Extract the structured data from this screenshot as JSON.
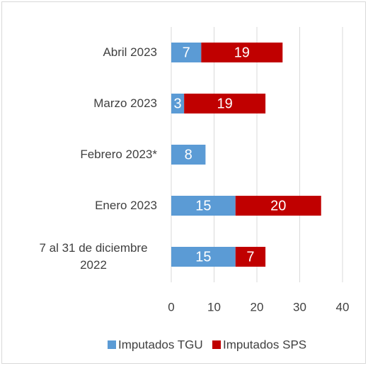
{
  "chart_data": {
    "type": "bar",
    "orientation": "horizontal",
    "stacked": true,
    "categories": [
      "Abril 2023",
      "Marzo 2023",
      "Febrero 2023*",
      "Enero 2023",
      "7 al 31 de diciembre 2022"
    ],
    "series": [
      {
        "name": "Imputados TGU",
        "color": "#5b9bd5",
        "values": [
          7,
          3,
          8,
          15,
          15
        ]
      },
      {
        "name": "Imputados SPS",
        "color": "#c00000",
        "values": [
          19,
          19,
          null,
          20,
          7
        ]
      }
    ],
    "xlim": [
      0,
      40
    ],
    "xticks": [
      0,
      10,
      20,
      30,
      40
    ],
    "grid": true,
    "legend": "bottom"
  }
}
